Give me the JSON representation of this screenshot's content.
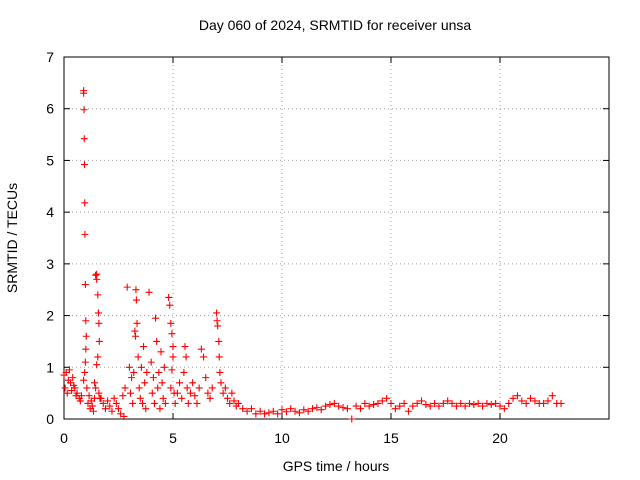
{
  "chart_data": {
    "type": "scatter",
    "title": "Day 060 of 2024, SRMTID for receiver unsa",
    "xlabel": "GPS time / hours",
    "ylabel": "SRMTID / TECUs",
    "xlim": [
      0,
      25
    ],
    "ylim": [
      0,
      7
    ],
    "xticks": [
      0,
      5,
      10,
      15,
      20
    ],
    "yticks": [
      0,
      1,
      2,
      3,
      4,
      5,
      6,
      7
    ],
    "grid": true,
    "marker": "+",
    "color": "#ff0000",
    "series": [
      {
        "name": "unsa",
        "points": [
          [
            0.0,
            0.85
          ],
          [
            0.05,
            0.6
          ],
          [
            0.1,
            0.9
          ],
          [
            0.15,
            0.5
          ],
          [
            0.2,
            0.75
          ],
          [
            0.25,
            0.95
          ],
          [
            0.3,
            0.7
          ],
          [
            0.35,
            0.55
          ],
          [
            0.4,
            0.8
          ],
          [
            0.45,
            0.65
          ],
          [
            0.5,
            0.6
          ],
          [
            0.55,
            0.45
          ],
          [
            0.6,
            0.5
          ],
          [
            0.7,
            0.4
          ],
          [
            0.75,
            0.35
          ],
          [
            0.8,
            0.45
          ],
          [
            0.9,
            6.35
          ],
          [
            0.9,
            6.3
          ],
          [
            0.92,
            5.98
          ],
          [
            0.93,
            5.42
          ],
          [
            0.94,
            4.92
          ],
          [
            0.95,
            4.18
          ],
          [
            0.96,
            3.57
          ],
          [
            0.98,
            2.6
          ],
          [
            1.0,
            1.9
          ],
          [
            1.02,
            1.6
          ],
          [
            1.0,
            1.35
          ],
          [
            0.98,
            1.1
          ],
          [
            0.95,
            0.9
          ],
          [
            0.9,
            0.75
          ],
          [
            1.05,
            0.6
          ],
          [
            1.1,
            0.3
          ],
          [
            1.15,
            0.45
          ],
          [
            1.2,
            0.2
          ],
          [
            1.25,
            0.35
          ],
          [
            1.3,
            0.25
          ],
          [
            1.35,
            0.15
          ],
          [
            1.4,
            0.4
          ],
          [
            1.45,
            2.78
          ],
          [
            1.5,
            2.8
          ],
          [
            1.5,
            2.7
          ],
          [
            1.55,
            2.4
          ],
          [
            1.58,
            2.05
          ],
          [
            1.6,
            1.85
          ],
          [
            1.62,
            1.5
          ],
          [
            1.55,
            1.2
          ],
          [
            1.5,
            1.05
          ],
          [
            1.45,
            0.6
          ],
          [
            1.4,
            0.7
          ],
          [
            1.6,
            0.5
          ],
          [
            1.65,
            0.4
          ],
          [
            1.7,
            0.4
          ],
          [
            1.8,
            0.3
          ],
          [
            1.9,
            0.2
          ],
          [
            2.0,
            0.35
          ],
          [
            2.1,
            0.25
          ],
          [
            2.2,
            0.15
          ],
          [
            2.3,
            0.4
          ],
          [
            2.4,
            0.3
          ],
          [
            2.5,
            0.2
          ],
          [
            2.6,
            0.1
          ],
          [
            2.7,
            0.45
          ],
          [
            2.75,
            0.05
          ],
          [
            2.8,
            0.6
          ],
          [
            2.9,
            2.55
          ],
          [
            3.0,
            1.0
          ],
          [
            3.05,
            0.5
          ],
          [
            3.1,
            0.8
          ],
          [
            3.15,
            0.3
          ],
          [
            3.2,
            0.9
          ],
          [
            3.25,
            1.7
          ],
          [
            3.28,
            1.6
          ],
          [
            3.3,
            2.5
          ],
          [
            3.32,
            2.3
          ],
          [
            3.35,
            1.85
          ],
          [
            3.4,
            1.2
          ],
          [
            3.45,
            0.6
          ],
          [
            3.5,
            0.4
          ],
          [
            3.55,
            1.0
          ],
          [
            3.6,
            0.3
          ],
          [
            3.65,
            1.4
          ],
          [
            3.7,
            0.7
          ],
          [
            3.75,
            0.2
          ],
          [
            3.8,
            0.9
          ],
          [
            3.9,
            2.45
          ],
          [
            4.0,
            1.1
          ],
          [
            4.05,
            0.5
          ],
          [
            4.1,
            0.8
          ],
          [
            4.15,
            0.3
          ],
          [
            4.2,
            1.95
          ],
          [
            4.25,
            1.5
          ],
          [
            4.3,
            0.6
          ],
          [
            4.35,
            0.9
          ],
          [
            4.4,
            0.2
          ],
          [
            4.45,
            1.3
          ],
          [
            4.5,
            0.7
          ],
          [
            4.55,
            0.4
          ],
          [
            4.6,
            1.0
          ],
          [
            4.65,
            0.3
          ],
          [
            4.8,
            2.35
          ],
          [
            4.85,
            2.2
          ],
          [
            4.9,
            1.85
          ],
          [
            4.95,
            1.65
          ],
          [
            5.0,
            1.4
          ],
          [
            5.0,
            1.2
          ],
          [
            4.95,
            0.95
          ],
          [
            4.9,
            0.6
          ],
          [
            5.05,
            0.5
          ],
          [
            5.1,
            0.3
          ],
          [
            5.2,
            0.5
          ],
          [
            5.3,
            0.7
          ],
          [
            5.4,
            0.4
          ],
          [
            5.5,
            0.9
          ],
          [
            5.55,
            1.4
          ],
          [
            5.6,
            1.2
          ],
          [
            5.65,
            0.6
          ],
          [
            5.7,
            0.3
          ],
          [
            5.8,
            0.5
          ],
          [
            5.9,
            0.7
          ],
          [
            6.0,
            0.45
          ],
          [
            6.1,
            0.3
          ],
          [
            6.2,
            0.6
          ],
          [
            6.3,
            1.35
          ],
          [
            6.4,
            1.2
          ],
          [
            6.5,
            0.8
          ],
          [
            6.6,
            0.5
          ],
          [
            6.7,
            0.4
          ],
          [
            6.8,
            0.6
          ],
          [
            7.0,
            2.05
          ],
          [
            7.02,
            1.9
          ],
          [
            7.05,
            1.8
          ],
          [
            7.1,
            1.5
          ],
          [
            7.12,
            1.2
          ],
          [
            7.15,
            0.9
          ],
          [
            7.2,
            0.7
          ],
          [
            7.3,
            0.5
          ],
          [
            7.4,
            0.6
          ],
          [
            7.5,
            0.4
          ],
          [
            7.6,
            0.3
          ],
          [
            7.7,
            0.5
          ],
          [
            7.8,
            0.35
          ],
          [
            7.9,
            0.25
          ],
          [
            8.0,
            0.3
          ],
          [
            8.2,
            0.2
          ],
          [
            8.4,
            0.15
          ],
          [
            8.6,
            0.2
          ],
          [
            8.8,
            0.1
          ],
          [
            9.0,
            0.15
          ],
          [
            9.2,
            0.1
          ],
          [
            9.4,
            0.12
          ],
          [
            9.6,
            0.15
          ],
          [
            9.8,
            0.1
          ],
          [
            10.0,
            0.18
          ],
          [
            10.2,
            0.14
          ],
          [
            10.4,
            0.2
          ],
          [
            10.6,
            0.15
          ],
          [
            10.8,
            0.12
          ],
          [
            11.0,
            0.18
          ],
          [
            11.2,
            0.15
          ],
          [
            11.4,
            0.2
          ],
          [
            11.6,
            0.22
          ],
          [
            11.8,
            0.18
          ],
          [
            12.0,
            0.25
          ],
          [
            12.2,
            0.28
          ],
          [
            12.4,
            0.3
          ],
          [
            12.6,
            0.25
          ],
          [
            12.8,
            0.22
          ],
          [
            13.0,
            0.2
          ],
          [
            13.2,
            0.0
          ],
          [
            13.4,
            0.25
          ],
          [
            13.6,
            0.2
          ],
          [
            13.8,
            0.3
          ],
          [
            14.0,
            0.25
          ],
          [
            14.2,
            0.28
          ],
          [
            14.4,
            0.3
          ],
          [
            14.6,
            0.35
          ],
          [
            14.8,
            0.4
          ],
          [
            15.0,
            0.3
          ],
          [
            15.2,
            0.2
          ],
          [
            15.4,
            0.25
          ],
          [
            15.6,
            0.3
          ],
          [
            15.8,
            0.15
          ],
          [
            16.0,
            0.25
          ],
          [
            16.2,
            0.3
          ],
          [
            16.4,
            0.35
          ],
          [
            16.6,
            0.28
          ],
          [
            16.8,
            0.25
          ],
          [
            17.0,
            0.3
          ],
          [
            17.2,
            0.25
          ],
          [
            17.4,
            0.3
          ],
          [
            17.6,
            0.35
          ],
          [
            17.8,
            0.3
          ],
          [
            18.0,
            0.25
          ],
          [
            18.2,
            0.3
          ],
          [
            18.4,
            0.25
          ],
          [
            18.6,
            0.3
          ],
          [
            18.8,
            0.28
          ],
          [
            19.0,
            0.3
          ],
          [
            19.2,
            0.25
          ],
          [
            19.4,
            0.3
          ],
          [
            19.6,
            0.28
          ],
          [
            19.8,
            0.3
          ],
          [
            20.0,
            0.25
          ],
          [
            20.2,
            0.2
          ],
          [
            20.4,
            0.3
          ],
          [
            20.6,
            0.4
          ],
          [
            20.8,
            0.45
          ],
          [
            21.0,
            0.35
          ],
          [
            21.2,
            0.3
          ],
          [
            21.4,
            0.4
          ],
          [
            21.6,
            0.35
          ],
          [
            21.8,
            0.3
          ],
          [
            22.0,
            0.3
          ],
          [
            22.2,
            0.35
          ],
          [
            22.4,
            0.45
          ],
          [
            22.6,
            0.3
          ],
          [
            22.8,
            0.3
          ]
        ]
      }
    ]
  }
}
